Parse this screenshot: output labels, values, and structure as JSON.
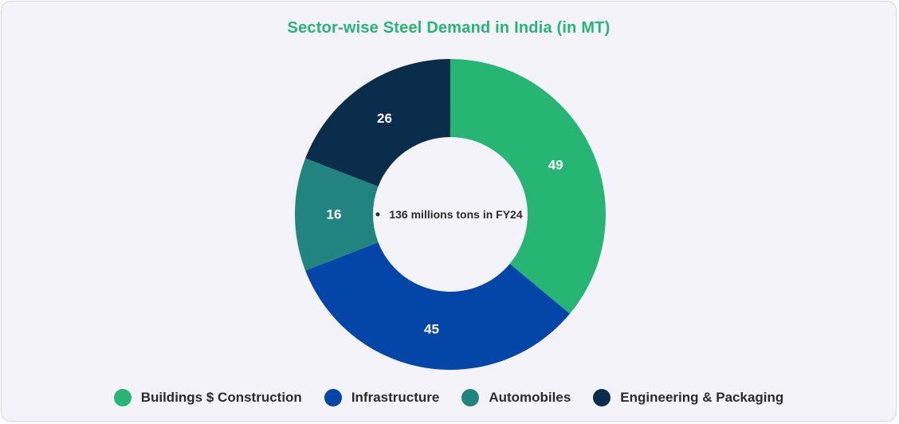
{
  "chart_data": {
    "type": "pie",
    "title": "Sector-wise Steel Demand in India (in MT)",
    "center_label": "136 millions tons in FY24",
    "categories": [
      "Buildings $ Construction",
      "Infrastructure",
      "Automobiles",
      "Engineering & Packaging"
    ],
    "values": [
      49,
      45,
      16,
      26
    ],
    "colors": [
      "#26b573",
      "#0446a8",
      "#22847f",
      "#0a2d4b"
    ],
    "legend_position": "bottom",
    "donut": true
  }
}
